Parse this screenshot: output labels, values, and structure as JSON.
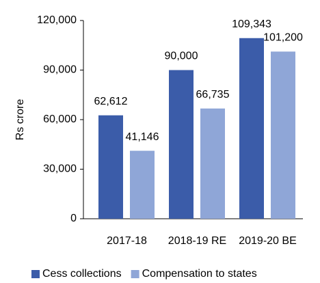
{
  "chart_data": {
    "type": "bar",
    "y_label": "Rs crore",
    "categories": [
      "2017-18",
      "2018-19 RE",
      "2019-20 BE"
    ],
    "series": [
      {
        "name": "Cess collections",
        "color": "#3b5ca9",
        "values": [
          62612,
          90000,
          109343
        ],
        "value_labels": [
          "62,612",
          "90,000",
          "109,343"
        ]
      },
      {
        "name": "Compensation to states",
        "color": "#8fa6d7",
        "values": [
          41146,
          66735,
          101200
        ],
        "value_labels": [
          "41,146",
          "66,735",
          "101,200"
        ]
      }
    ],
    "ylim": [
      0,
      120000
    ],
    "yticks": [
      {
        "value": 0,
        "label": "0"
      },
      {
        "value": 30000,
        "label": "30,000"
      },
      {
        "value": 60000,
        "label": "60,000"
      },
      {
        "value": 90000,
        "label": "90,000"
      },
      {
        "value": 120000,
        "label": "120,000"
      }
    ],
    "legend": "bottom"
  }
}
